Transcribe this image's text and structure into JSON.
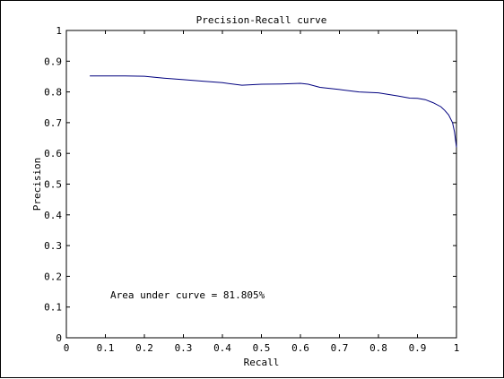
{
  "chart_data": {
    "type": "line",
    "title": "Precision-Recall curve",
    "xlabel": "Recall",
    "ylabel": "Precision",
    "xlim": [
      0,
      1
    ],
    "ylim": [
      0,
      1
    ],
    "xticks": [
      "0",
      "0.1",
      "0.2",
      "0.3",
      "0.4",
      "0.5",
      "0.6",
      "0.7",
      "0.8",
      "0.9",
      "1"
    ],
    "yticks": [
      "0",
      "0.1",
      "0.2",
      "0.3",
      "0.4",
      "0.5",
      "0.6",
      "0.7",
      "0.8",
      "0.9",
      "1"
    ],
    "grid": false,
    "annotation": "Area under curve = 81.805%",
    "series": [
      {
        "color": "#00007f",
        "x": [
          0.06,
          0.1,
          0.15,
          0.2,
          0.25,
          0.3,
          0.35,
          0.4,
          0.45,
          0.5,
          0.55,
          0.6,
          0.62,
          0.65,
          0.7,
          0.75,
          0.8,
          0.85,
          0.88,
          0.9,
          0.92,
          0.94,
          0.96,
          0.97,
          0.98,
          0.99,
          0.995,
          1.0
        ],
        "y": [
          0.852,
          0.852,
          0.852,
          0.851,
          0.845,
          0.84,
          0.835,
          0.83,
          0.822,
          0.825,
          0.826,
          0.828,
          0.825,
          0.815,
          0.808,
          0.8,
          0.797,
          0.787,
          0.78,
          0.779,
          0.775,
          0.765,
          0.752,
          0.74,
          0.725,
          0.7,
          0.67,
          0.62
        ]
      }
    ]
  }
}
